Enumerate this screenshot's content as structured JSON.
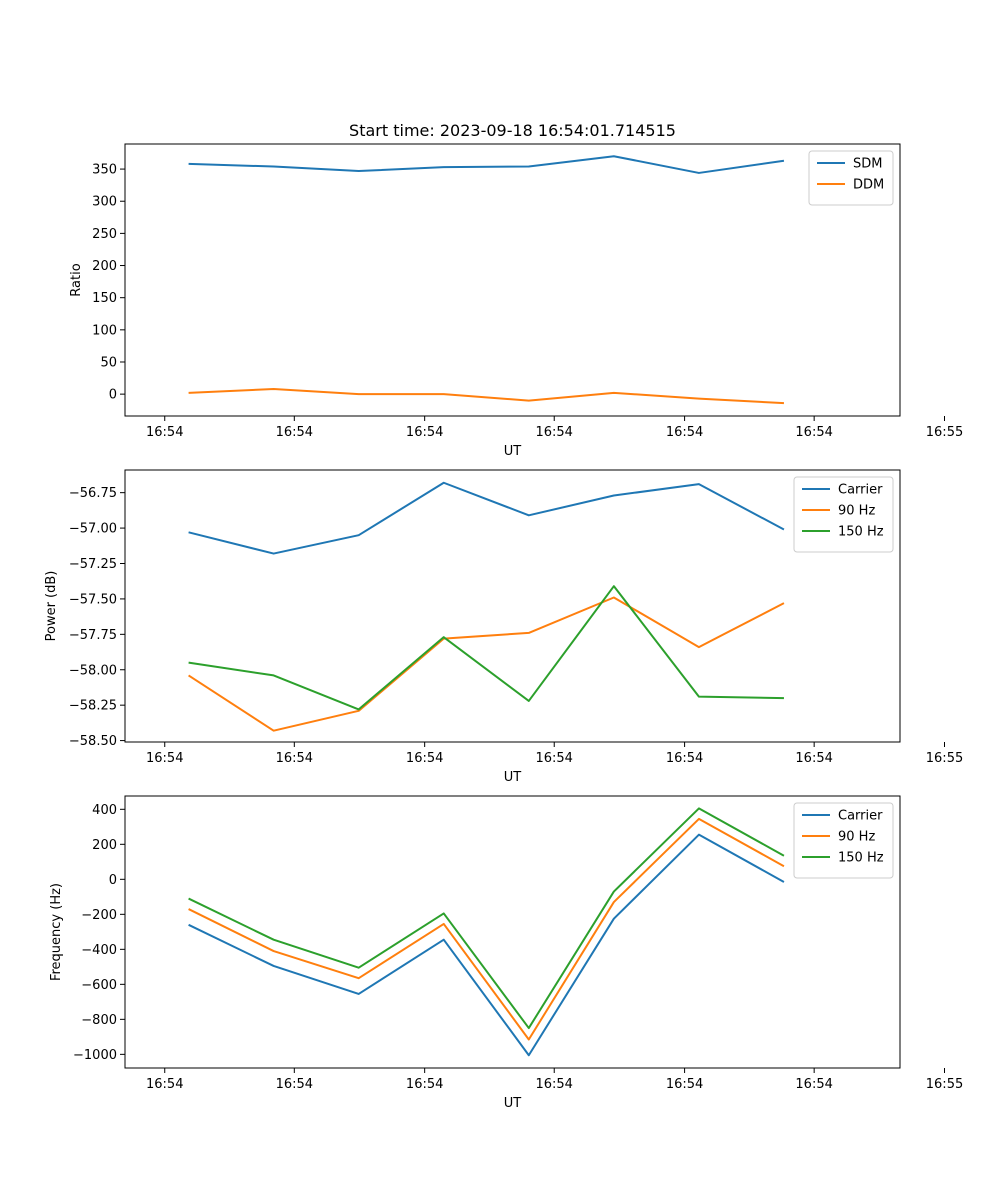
{
  "chart_data": [
    {
      "type": "line",
      "title": "Start time: 2023-09-18 16:54:01.714515",
      "xlabel": "UT",
      "ylabel": "Ratio",
      "xlim": [
        -0.5,
        9.25
      ],
      "ylim": [
        -34,
        389
      ],
      "x_ticks": [
        0,
        1.63,
        3.27,
        4.9,
        6.54,
        8.17,
        9.81
      ],
      "x_tick_labels": [
        "16:54",
        "16:54",
        "16:54",
        "16:54",
        "16:54",
        "16:54",
        "16:55"
      ],
      "y_ticks": [
        0,
        50,
        100,
        150,
        200,
        250,
        300,
        350
      ],
      "y_tick_labels": [
        "0",
        "50",
        "100",
        "150",
        "200",
        "250",
        "300",
        "350"
      ],
      "legend_position": "top-right",
      "x": [
        0.3,
        1.37,
        2.44,
        3.51,
        4.58,
        5.65,
        6.72,
        7.79
      ],
      "series": [
        {
          "name": "SDM",
          "color": "#1f77b4",
          "values": [
            358,
            354,
            347,
            353,
            354,
            370,
            344,
            363
          ]
        },
        {
          "name": "DDM",
          "color": "#ff7f0e",
          "values": [
            2,
            8,
            0,
            0,
            -10,
            2,
            -7,
            -14
          ]
        }
      ]
    },
    {
      "type": "line",
      "title": "",
      "xlabel": "UT",
      "ylabel": "Power (dB)",
      "xlim": [
        -0.5,
        9.25
      ],
      "ylim": [
        -58.51,
        -56.59
      ],
      "x_ticks": [
        0,
        1.63,
        3.27,
        4.9,
        6.54,
        8.17,
        9.81
      ],
      "x_tick_labels": [
        "16:54",
        "16:54",
        "16:54",
        "16:54",
        "16:54",
        "16:54",
        "16:55"
      ],
      "y_ticks": [
        -58.5,
        -58.25,
        -58.0,
        -57.75,
        -57.5,
        -57.25,
        -57.0,
        -56.75
      ],
      "y_tick_labels": [
        "−58.50",
        "−58.25",
        "−58.00",
        "−57.75",
        "−57.50",
        "−57.25",
        "−57.00",
        "−56.75"
      ],
      "legend_position": "top-right",
      "x": [
        0.3,
        1.37,
        2.44,
        3.51,
        4.58,
        5.65,
        6.72,
        7.79
      ],
      "series": [
        {
          "name": "Carrier",
          "color": "#1f77b4",
          "values": [
            -57.03,
            -57.18,
            -57.05,
            -56.68,
            -56.91,
            -56.77,
            -56.69,
            -57.01
          ]
        },
        {
          "name": "90 Hz",
          "color": "#ff7f0e",
          "values": [
            -58.04,
            -58.43,
            -58.29,
            -57.78,
            -57.74,
            -57.49,
            -57.84,
            -57.53
          ]
        },
        {
          "name": "150 Hz",
          "color": "#2ca02c",
          "values": [
            -57.95,
            -58.04,
            -58.28,
            -57.77,
            -58.22,
            -57.41,
            -58.19,
            -58.2
          ]
        }
      ]
    },
    {
      "type": "line",
      "title": "",
      "xlabel": "UT",
      "ylabel": "Frequency (Hz)",
      "xlim": [
        -0.5,
        9.25
      ],
      "ylim": [
        -1078,
        476
      ],
      "x_ticks": [
        0,
        1.63,
        3.27,
        4.9,
        6.54,
        8.17,
        9.81
      ],
      "x_tick_labels": [
        "16:54",
        "16:54",
        "16:54",
        "16:54",
        "16:54",
        "16:54",
        "16:55"
      ],
      "y_ticks": [
        -1000,
        -800,
        -600,
        -400,
        -200,
        0,
        200,
        400
      ],
      "y_tick_labels": [
        "−1000",
        "−800",
        "−600",
        "−400",
        "−200",
        "0",
        "200",
        "400"
      ],
      "legend_position": "top-right",
      "x": [
        0.3,
        1.37,
        2.44,
        3.51,
        4.58,
        5.65,
        6.72,
        7.79
      ],
      "series": [
        {
          "name": "Carrier",
          "color": "#1f77b4",
          "values": [
            -260,
            -495,
            -655,
            -345,
            -1005,
            -225,
            255,
            -15
          ]
        },
        {
          "name": "90 Hz",
          "color": "#ff7f0e",
          "values": [
            -170,
            -410,
            -565,
            -255,
            -915,
            -130,
            345,
            75
          ]
        },
        {
          "name": "150 Hz",
          "color": "#2ca02c",
          "values": [
            -110,
            -345,
            -505,
            -195,
            -850,
            -70,
            405,
            135
          ]
        }
      ]
    }
  ]
}
